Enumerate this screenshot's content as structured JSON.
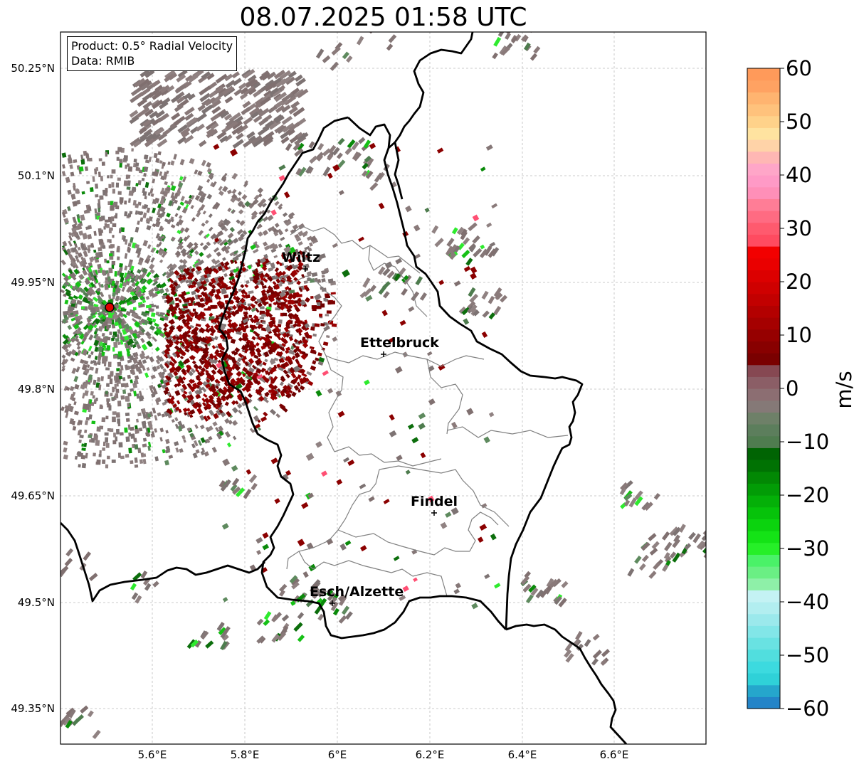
{
  "title": "08.07.2025 01:58 UTC",
  "info": {
    "product": "Product: 0.5° Radial Velocity",
    "data": "Data: RMIB"
  },
  "lon_ticks": [
    "5.6°E",
    "5.8°E",
    "6°E",
    "6.2°E",
    "6.4°E",
    "6.6°E"
  ],
  "lat_ticks": [
    "50.25°N",
    "50.1°N",
    "49.95°N",
    "49.8°N",
    "49.65°N",
    "49.5°N",
    "49.35°N"
  ],
  "cities": [
    {
      "name": "Wiltz"
    },
    {
      "name": "Ettelbruck"
    },
    {
      "name": "Findel"
    },
    {
      "name": "Esch/Alzette"
    }
  ],
  "colorbar": {
    "label": "m/s",
    "ticks": [
      "60",
      "50",
      "40",
      "30",
      "20",
      "10",
      "0",
      "−10",
      "−20",
      "−30",
      "−40",
      "−50",
      "−60"
    ]
  },
  "colors": {
    "radar_site": "#e00000",
    "border": "#000000",
    "cantons": "#808080",
    "grid": "#bbbbbb"
  }
}
